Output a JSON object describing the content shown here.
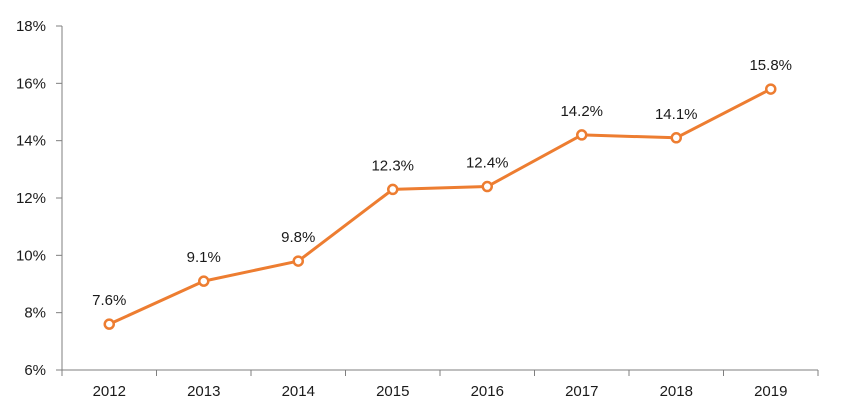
{
  "chart_data": {
    "type": "line",
    "categories": [
      "2012",
      "2013",
      "2014",
      "2015",
      "2016",
      "2017",
      "2018",
      "2019"
    ],
    "series": [
      {
        "values": [
          7.6,
          9.1,
          9.8,
          12.3,
          12.4,
          14.2,
          14.1,
          15.8
        ],
        "labels": [
          "7.6%",
          "9.1%",
          "9.8%",
          "12.3%",
          "12.4%",
          "14.2%",
          "14.1%",
          "15.8%"
        ],
        "color": "#ed7d31"
      }
    ],
    "ylim": [
      6,
      18
    ],
    "yticks": [
      6,
      8,
      10,
      12,
      14,
      16,
      18
    ],
    "ytick_labels": [
      "6%",
      "8%",
      "10%",
      "12%",
      "14%",
      "16%",
      "18%"
    ],
    "grid": false,
    "axis_color": "#7f7f7f"
  }
}
